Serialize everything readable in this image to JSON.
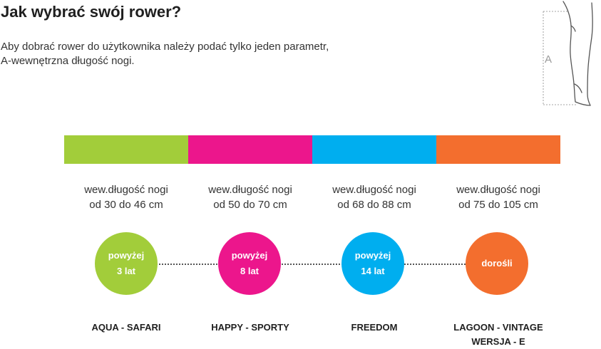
{
  "title": "Jak wybrać swój rower?",
  "intro": {
    "line1": "Aby dobrać rower do użytkownika należy podać tylko jeden parametr,",
    "line2": "A-wewnętrzna długość nogi."
  },
  "leg_label": "A",
  "colors": {
    "green": "#a2cd3a",
    "magenta": "#ec168c",
    "cyan": "#00aeef",
    "orange": "#f36e2e"
  },
  "groups": [
    {
      "range_line1": "wew.długość nogi",
      "range_line2": "od 30 do 46 cm",
      "age_line1": "powyżej",
      "age_line2": "3 lat",
      "model_line1": "AQUA - SAFARI",
      "model_line2": ""
    },
    {
      "range_line1": "wew.długość nogi",
      "range_line2": "od 50 do 70 cm",
      "age_line1": "powyżej",
      "age_line2": "8 lat",
      "model_line1": "HAPPY - SPORTY",
      "model_line2": ""
    },
    {
      "range_line1": "wew.długość nogi",
      "range_line2": "od 68 do 88 cm",
      "age_line1": "powyżej",
      "age_line2": "14 lat",
      "model_line1": "FREEDOM",
      "model_line2": ""
    },
    {
      "range_line1": "wew.długość nogi",
      "range_line2": "od 75 do 105 cm",
      "age_line1": "dorośli",
      "age_line2": "",
      "model_line1": "LAGOON - VINTAGE",
      "model_line2": "WERSJA - E"
    }
  ]
}
